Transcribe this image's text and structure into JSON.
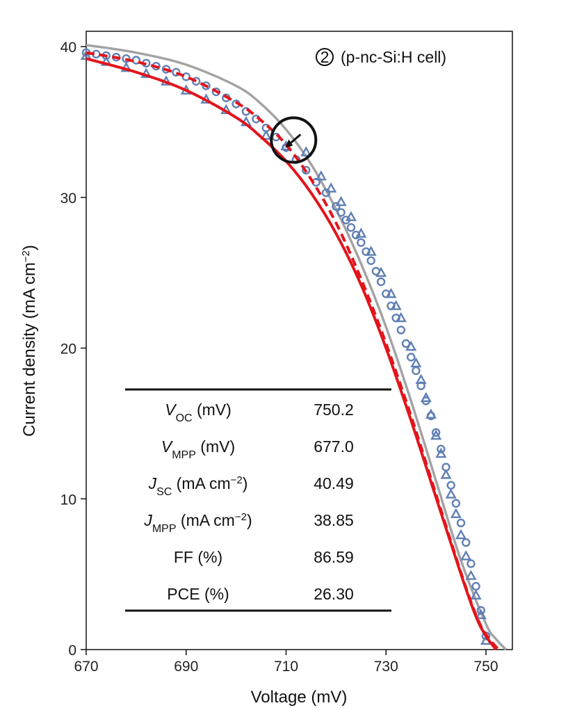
{
  "chart_data": {
    "type": "line",
    "title": "",
    "xlabel": "Voltage (mV)",
    "ylabel_main": "Current density (mA cm",
    "ylabel_sup": "−2",
    "ylabel_close": ")",
    "xlim": [
      670,
      755
    ],
    "ylim": [
      0,
      41
    ],
    "xticks": [
      670,
      690,
      710,
      730,
      750
    ],
    "yticks": [
      0,
      10,
      20,
      30,
      40
    ],
    "grid": false,
    "annotation": {
      "marker": "2",
      "text": "(p-nc-Si:H cell)",
      "circle_at": {
        "x": 711.5,
        "y": 33.8
      }
    },
    "series": [
      {
        "name": "gray solid",
        "style": "solid",
        "color": "#a3a3a3",
        "x": [
          670,
          680,
          690,
          700,
          705,
          710,
          715,
          720,
          725,
          730,
          735,
          740,
          745,
          750,
          752,
          754
        ],
        "y": [
          40.1,
          39.6,
          38.8,
          37.4,
          36.2,
          34.5,
          32.2,
          29.2,
          25.6,
          21.4,
          16.5,
          11.2,
          5.9,
          1.7,
          0.7,
          0
        ]
      },
      {
        "name": "red dashed",
        "style": "dashed",
        "color": "#e3141b",
        "x": [
          670,
          680,
          690,
          700,
          705,
          710,
          715,
          720,
          725,
          730,
          735,
          740,
          745,
          748,
          750,
          752.5
        ],
        "y": [
          39.6,
          39.0,
          38.0,
          36.3,
          35.1,
          33.5,
          31.2,
          28.3,
          24.6,
          20.3,
          15.5,
          10.3,
          5.1,
          2.3,
          1.0,
          0
        ]
      },
      {
        "name": "red solid",
        "style": "solid",
        "color": "#e3141b",
        "x": [
          670,
          680,
          690,
          700,
          705,
          710,
          715,
          720,
          725,
          730,
          735,
          740,
          745,
          748,
          750,
          752
        ],
        "y": [
          39.2,
          38.3,
          37.1,
          35.3,
          34.0,
          32.4,
          30.3,
          27.6,
          24.2,
          20.0,
          15.2,
          10.1,
          5.0,
          2.2,
          0.9,
          0
        ]
      },
      {
        "name": "circles",
        "style": "marker-circle",
        "color": "#5f7fb4",
        "x": [
          670,
          672,
          674,
          676,
          678,
          680,
          682,
          684,
          686,
          688,
          690,
          692,
          694,
          696,
          698,
          700,
          702,
          704,
          706,
          708,
          710,
          712,
          714,
          716,
          718,
          720,
          721,
          722,
          723,
          724,
          725,
          726,
          727,
          728,
          729,
          730,
          731,
          732,
          733,
          734,
          735,
          736,
          737,
          738,
          739,
          740,
          741,
          742,
          743,
          744,
          745,
          746,
          747,
          748,
          749,
          750
        ],
        "y": [
          39.6,
          39.5,
          39.4,
          39.3,
          39.2,
          39.1,
          38.9,
          38.7,
          38.5,
          38.3,
          38.0,
          37.7,
          37.4,
          37.0,
          36.6,
          36.2,
          35.7,
          35.2,
          34.6,
          34.0,
          33.3,
          32.5,
          31.8,
          31.0,
          30.3,
          29.4,
          29.0,
          28.5,
          28.0,
          27.5,
          27.0,
          26.4,
          25.8,
          25.1,
          24.4,
          23.6,
          22.8,
          22.0,
          21.2,
          20.3,
          19.4,
          18.5,
          17.5,
          16.5,
          15.5,
          14.4,
          13.3,
          12.1,
          10.9,
          9.7,
          8.4,
          7.1,
          5.7,
          4.2,
          2.6,
          0.9
        ]
      },
      {
        "name": "triangles",
        "style": "marker-triangle",
        "color": "#5f7fb4",
        "x": [
          670,
          674,
          678,
          682,
          686,
          690,
          694,
          698,
          702,
          706,
          710,
          714,
          717,
          719,
          721,
          723,
          725,
          727,
          729,
          731,
          732,
          733,
          735,
          736,
          737,
          738,
          739,
          740,
          741,
          742,
          743,
          744,
          745,
          746,
          747,
          748,
          749,
          750
        ],
        "y": [
          39.4,
          39.0,
          38.6,
          38.2,
          37.7,
          37.1,
          36.5,
          35.8,
          35.0,
          34.1,
          33.4,
          33.0,
          31.4,
          30.6,
          29.7,
          28.7,
          27.6,
          26.4,
          25.0,
          23.6,
          22.8,
          22.0,
          20.1,
          19.0,
          17.9,
          16.7,
          15.6,
          14.2,
          13.0,
          11.6,
          10.3,
          9.0,
          7.6,
          6.2,
          4.9,
          3.6,
          2.3,
          0.6
        ]
      }
    ],
    "table": {
      "rows": [
        {
          "param": "V",
          "sub": "OC",
          "unit": " (mV)",
          "sup": "",
          "close": "",
          "value": "750.2"
        },
        {
          "param": "V",
          "sub": "MPP",
          "unit": " (mV)",
          "sup": "",
          "close": "",
          "value": "677.0"
        },
        {
          "param": "J",
          "sub": "SC",
          "unit": " (mA cm",
          "sup": "−2",
          "close": ")",
          "value": "40.49"
        },
        {
          "param": "J",
          "sub": "MPP",
          "unit": " (mA cm",
          "sup": "−2",
          "close": ")",
          "value": "38.85"
        },
        {
          "param": "FF (%)",
          "sub": "",
          "unit": "",
          "sup": "",
          "close": "",
          "value": "86.59"
        },
        {
          "param": "PCE (%)",
          "sub": "",
          "unit": "",
          "sup": "",
          "close": "",
          "value": "26.30"
        }
      ]
    }
  }
}
